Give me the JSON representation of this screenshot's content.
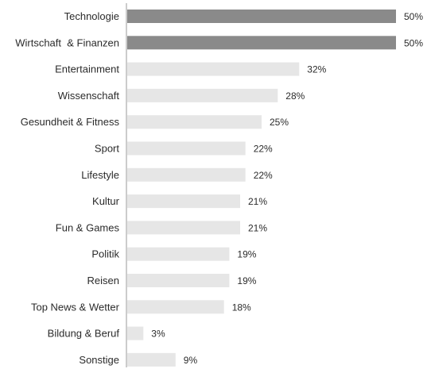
{
  "chart_data": {
    "type": "bar",
    "orientation": "horizontal",
    "categories": [
      "Technologie",
      "Wirtschaft  & Finanzen",
      "Entertainment",
      "Wissenschaft",
      "Gesundheit & Fitness",
      "Sport",
      "Lifestyle",
      "Kultur",
      "Fun & Games",
      "Politik",
      "Reisen",
      "Top News & Wetter",
      "Bildung & Beruf",
      "Sonstige"
    ],
    "values": [
      50,
      50,
      32,
      28,
      25,
      22,
      22,
      21,
      21,
      19,
      19,
      18,
      3,
      9
    ],
    "value_labels": [
      "50%",
      "50%",
      "32%",
      "28%",
      "25%",
      "22%",
      "22%",
      "21%",
      "21%",
      "19%",
      "19%",
      "18%",
      "3%",
      "9%"
    ],
    "highlight_values": [
      50
    ],
    "xlim": [
      0,
      50
    ],
    "grid": false,
    "legend": "none",
    "colors": {
      "highlight_bar": "#8a8a8a",
      "bar": "#e6e6e6",
      "text": "#2b2b2b",
      "divider": "#9a9a9a"
    }
  }
}
